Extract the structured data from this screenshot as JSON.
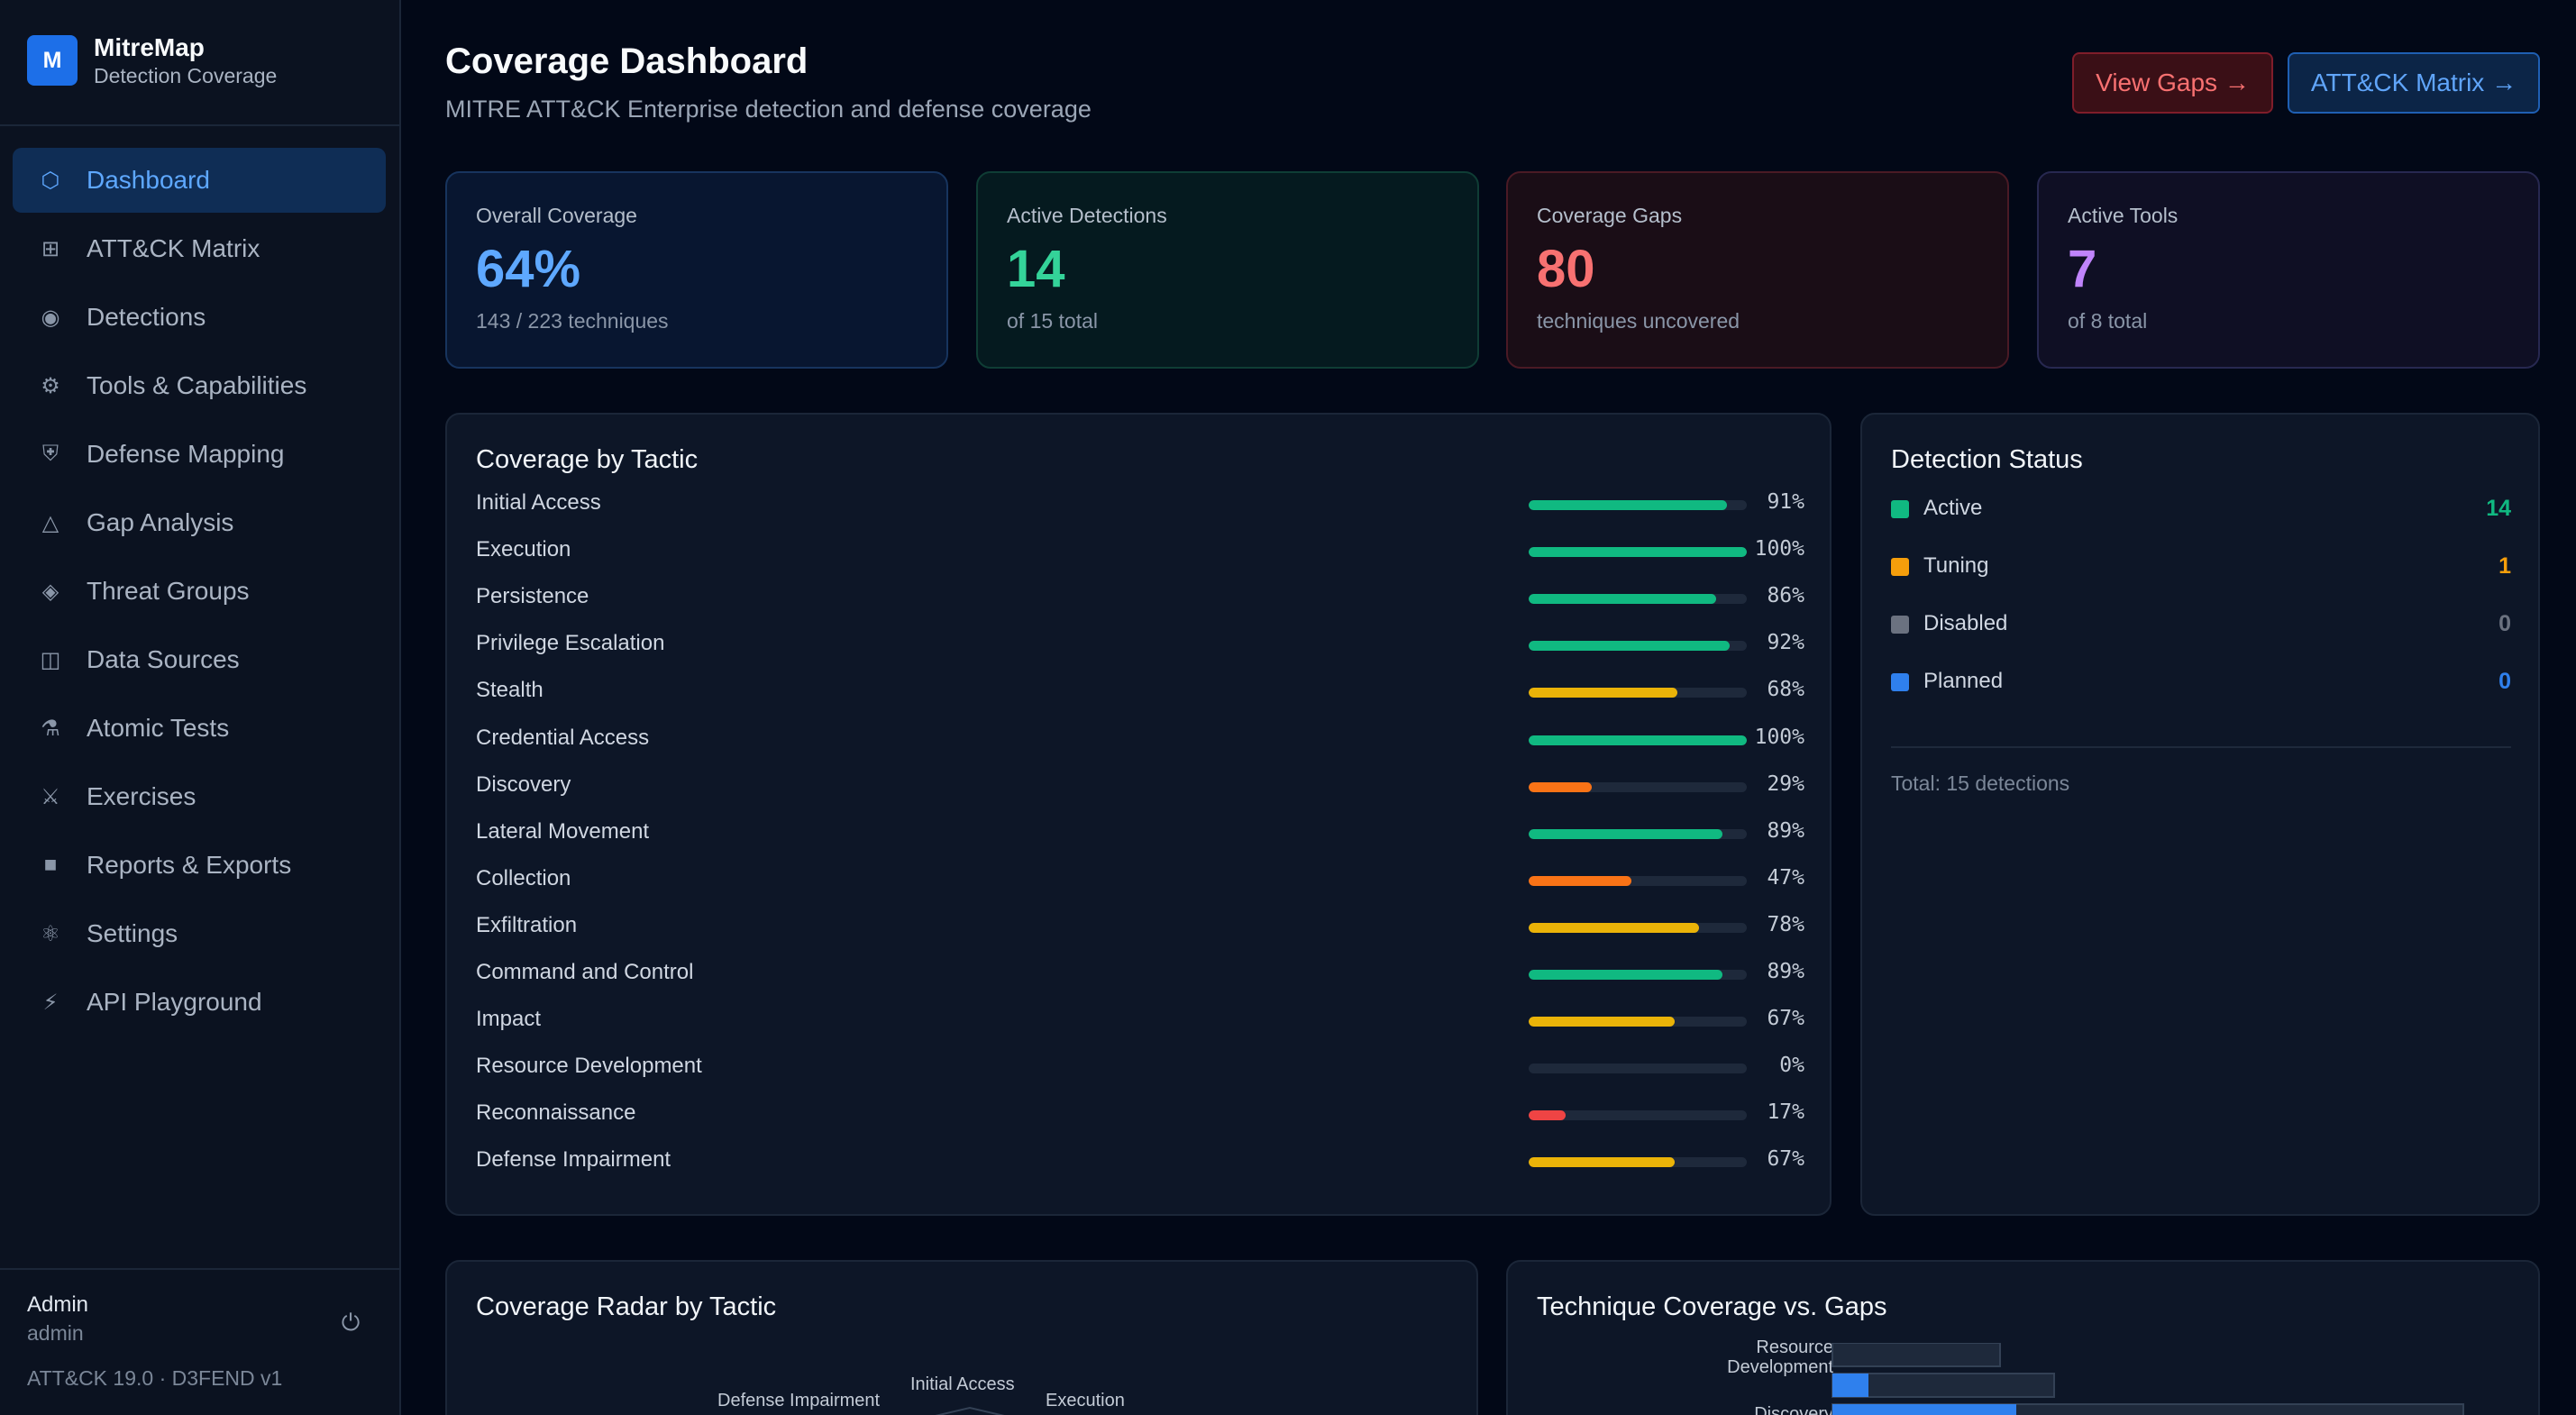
{
  "brand": {
    "logo": "M",
    "name": "MitreMap",
    "subtitle": "Detection Coverage"
  },
  "nav": [
    {
      "label": "Dashboard",
      "icon": "hexagon-icon",
      "glyph": "⬡",
      "active": true
    },
    {
      "label": "ATT&CK Matrix",
      "icon": "grid-icon",
      "glyph": "⊞"
    },
    {
      "label": "Detections",
      "icon": "radio-icon",
      "glyph": "◉"
    },
    {
      "label": "Tools & Capabilities",
      "icon": "gear-icon",
      "glyph": "⚙"
    },
    {
      "label": "Defense Mapping",
      "icon": "shield-icon",
      "glyph": "⛨"
    },
    {
      "label": "Gap Analysis",
      "icon": "warning-triangle-icon",
      "glyph": "△"
    },
    {
      "label": "Threat Groups",
      "icon": "diamond-icon",
      "glyph": "◈"
    },
    {
      "label": "Data Sources",
      "icon": "database-icon",
      "glyph": "◫"
    },
    {
      "label": "Atomic Tests",
      "icon": "flask-icon",
      "glyph": "⚗"
    },
    {
      "label": "Exercises",
      "icon": "swords-icon",
      "glyph": "⚔"
    },
    {
      "label": "Reports & Exports",
      "icon": "report-icon",
      "glyph": "■"
    },
    {
      "label": "Settings",
      "icon": "settings-icon",
      "glyph": "⚛"
    },
    {
      "label": "API Playground",
      "icon": "lightning-icon",
      "glyph": "⚡"
    }
  ],
  "user": {
    "name": "Admin",
    "role": "admin",
    "version": "ATT&CK 19.0 · D3FEND v1",
    "logout_glyph": "⏻"
  },
  "header": {
    "title": "Coverage Dashboard",
    "subtitle": "MITRE ATT&CK Enterprise detection and defense coverage",
    "view_gaps": "View Gaps →",
    "matrix": "ATT&CK Matrix →"
  },
  "stats": [
    {
      "label": "Overall Coverage",
      "value": "64%",
      "sub": "143 / 223 techniques",
      "color": "#5ea8ff"
    },
    {
      "label": "Active Detections",
      "value": "14",
      "sub": "of 15 total",
      "color": "#34d399"
    },
    {
      "label": "Coverage Gaps",
      "value": "80",
      "sub": "techniques uncovered",
      "color": "#f87171"
    },
    {
      "label": "Active Tools",
      "value": "7",
      "sub": "of 8 total",
      "color": "#c084fc"
    }
  ],
  "tactics": {
    "title": "Coverage by Tactic",
    "items": [
      {
        "name": "Initial Access",
        "pct": 91,
        "label": "91%",
        "color": "#10b981"
      },
      {
        "name": "Execution",
        "pct": 100,
        "label": "100%",
        "color": "#10b981"
      },
      {
        "name": "Persistence",
        "pct": 86,
        "label": "86%",
        "color": "#10b981"
      },
      {
        "name": "Privilege Escalation",
        "pct": 92,
        "label": "92%",
        "color": "#10b981"
      },
      {
        "name": "Stealth",
        "pct": 68,
        "label": "68%",
        "color": "#eab308"
      },
      {
        "name": "Credential Access",
        "pct": 100,
        "label": "100%",
        "color": "#10b981"
      },
      {
        "name": "Discovery",
        "pct": 29,
        "label": "29%",
        "color": "#f97316"
      },
      {
        "name": "Lateral Movement",
        "pct": 89,
        "label": "89%",
        "color": "#10b981"
      },
      {
        "name": "Collection",
        "pct": 47,
        "label": "47%",
        "color": "#f97316"
      },
      {
        "name": "Exfiltration",
        "pct": 78,
        "label": "78%",
        "color": "#eab308"
      },
      {
        "name": "Command and Control",
        "pct": 89,
        "label": "89%",
        "color": "#10b981"
      },
      {
        "name": "Impact",
        "pct": 67,
        "label": "67%",
        "color": "#eab308"
      },
      {
        "name": "Resource Development",
        "pct": 0,
        "label": "0%",
        "color": "#10b981"
      },
      {
        "name": "Reconnaissance",
        "pct": 17,
        "label": "17%",
        "color": "#ef4444"
      },
      {
        "name": "Defense Impairment",
        "pct": 67,
        "label": "67%",
        "color": "#eab308"
      }
    ]
  },
  "detection_status": {
    "title": "Detection Status",
    "items": [
      {
        "label": "Active",
        "count": "14",
        "color": "#10b981"
      },
      {
        "label": "Tuning",
        "count": "1",
        "color": "#f59e0b"
      },
      {
        "label": "Disabled",
        "count": "0",
        "color": "#6b7280"
      },
      {
        "label": "Planned",
        "count": "0",
        "color": "#2f80ed"
      }
    ],
    "total": "Total: 15 detections"
  },
  "radar": {
    "title": "Coverage Radar by Tactic",
    "labels": [
      "Defense Impairment",
      "Initial Access",
      "Execution"
    ]
  },
  "gaps_chart": {
    "title": "Technique Coverage vs. Gaps",
    "ylabels": [
      "Resource Development",
      "Discovery"
    ]
  }
}
